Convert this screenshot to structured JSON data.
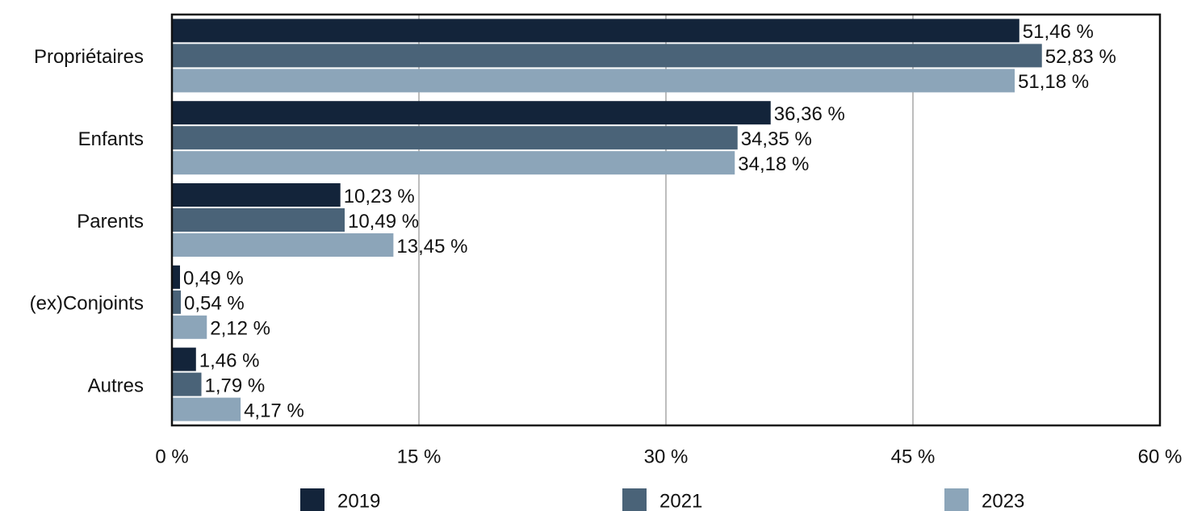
{
  "chart_data": {
    "type": "barh",
    "categories": [
      "Propriétaires",
      "Enfants",
      "Parents",
      "(ex)Conjoints",
      "Autres"
    ],
    "series": [
      {
        "name": "2019",
        "color": "#13243a",
        "values": [
          51.46,
          36.36,
          10.23,
          0.49,
          1.46
        ],
        "value_labels": [
          "51,46 %",
          "36,36 %",
          "10,23 %",
          "0,49 %",
          "1,46 %"
        ]
      },
      {
        "name": "2021",
        "color": "#4a6378",
        "values": [
          52.83,
          34.35,
          10.49,
          0.54,
          1.79
        ],
        "value_labels": [
          "52,83 %",
          "34,35 %",
          "10,49 %",
          "0,54 %",
          "1,79 %"
        ]
      },
      {
        "name": "2023",
        "color": "#8ca5b9",
        "values": [
          51.18,
          34.18,
          13.45,
          2.12,
          4.17
        ],
        "value_labels": [
          "51,18 %",
          "34,18 %",
          "13,45 %",
          "2,12 %",
          "4,17 %"
        ]
      }
    ],
    "xlim": [
      0,
      60
    ],
    "xticks": [
      {
        "value": 0,
        "label": "0 %"
      },
      {
        "value": 15,
        "label": "15 %"
      },
      {
        "value": 30,
        "label": "30 %"
      },
      {
        "value": 45,
        "label": "45 %"
      },
      {
        "value": 60,
        "label": "60 %"
      }
    ],
    "grid": true,
    "legend": "bottom"
  }
}
